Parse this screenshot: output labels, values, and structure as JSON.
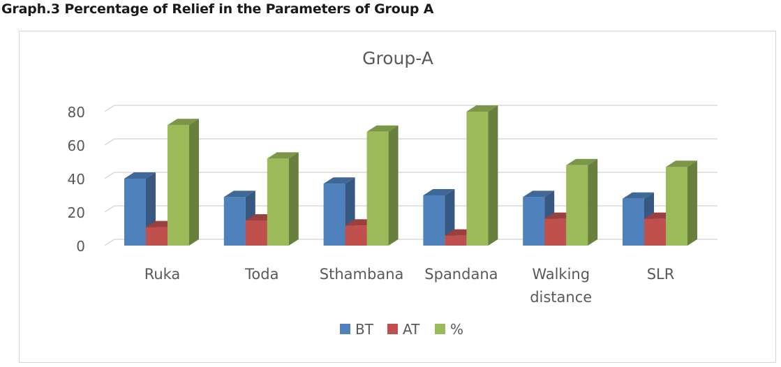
{
  "caption": "Graph.3 Percentage of Relief in the Parameters of Group A",
  "chart_data": {
    "type": "bar",
    "style": "3d-clustered-column",
    "title": "Group-A",
    "categories": [
      "Ruka",
      "Toda",
      "Sthambana",
      "Spandana",
      "Walking distance",
      "SLR"
    ],
    "series": [
      {
        "name": "BT",
        "color": "#4f81bd",
        "values": [
          40,
          29,
          37,
          30,
          29,
          28
        ]
      },
      {
        "name": "AT",
        "color": "#c0504d",
        "values": [
          11,
          15,
          12,
          6,
          16,
          16
        ]
      },
      {
        "name": "%",
        "color": "#9bbb59",
        "values": [
          72,
          52,
          68,
          80,
          48,
          47
        ]
      }
    ],
    "y_ticks": [
      0,
      20,
      40,
      60,
      80
    ],
    "ylim": [
      0,
      80
    ],
    "grid": true,
    "legend_position": "bottom"
  }
}
